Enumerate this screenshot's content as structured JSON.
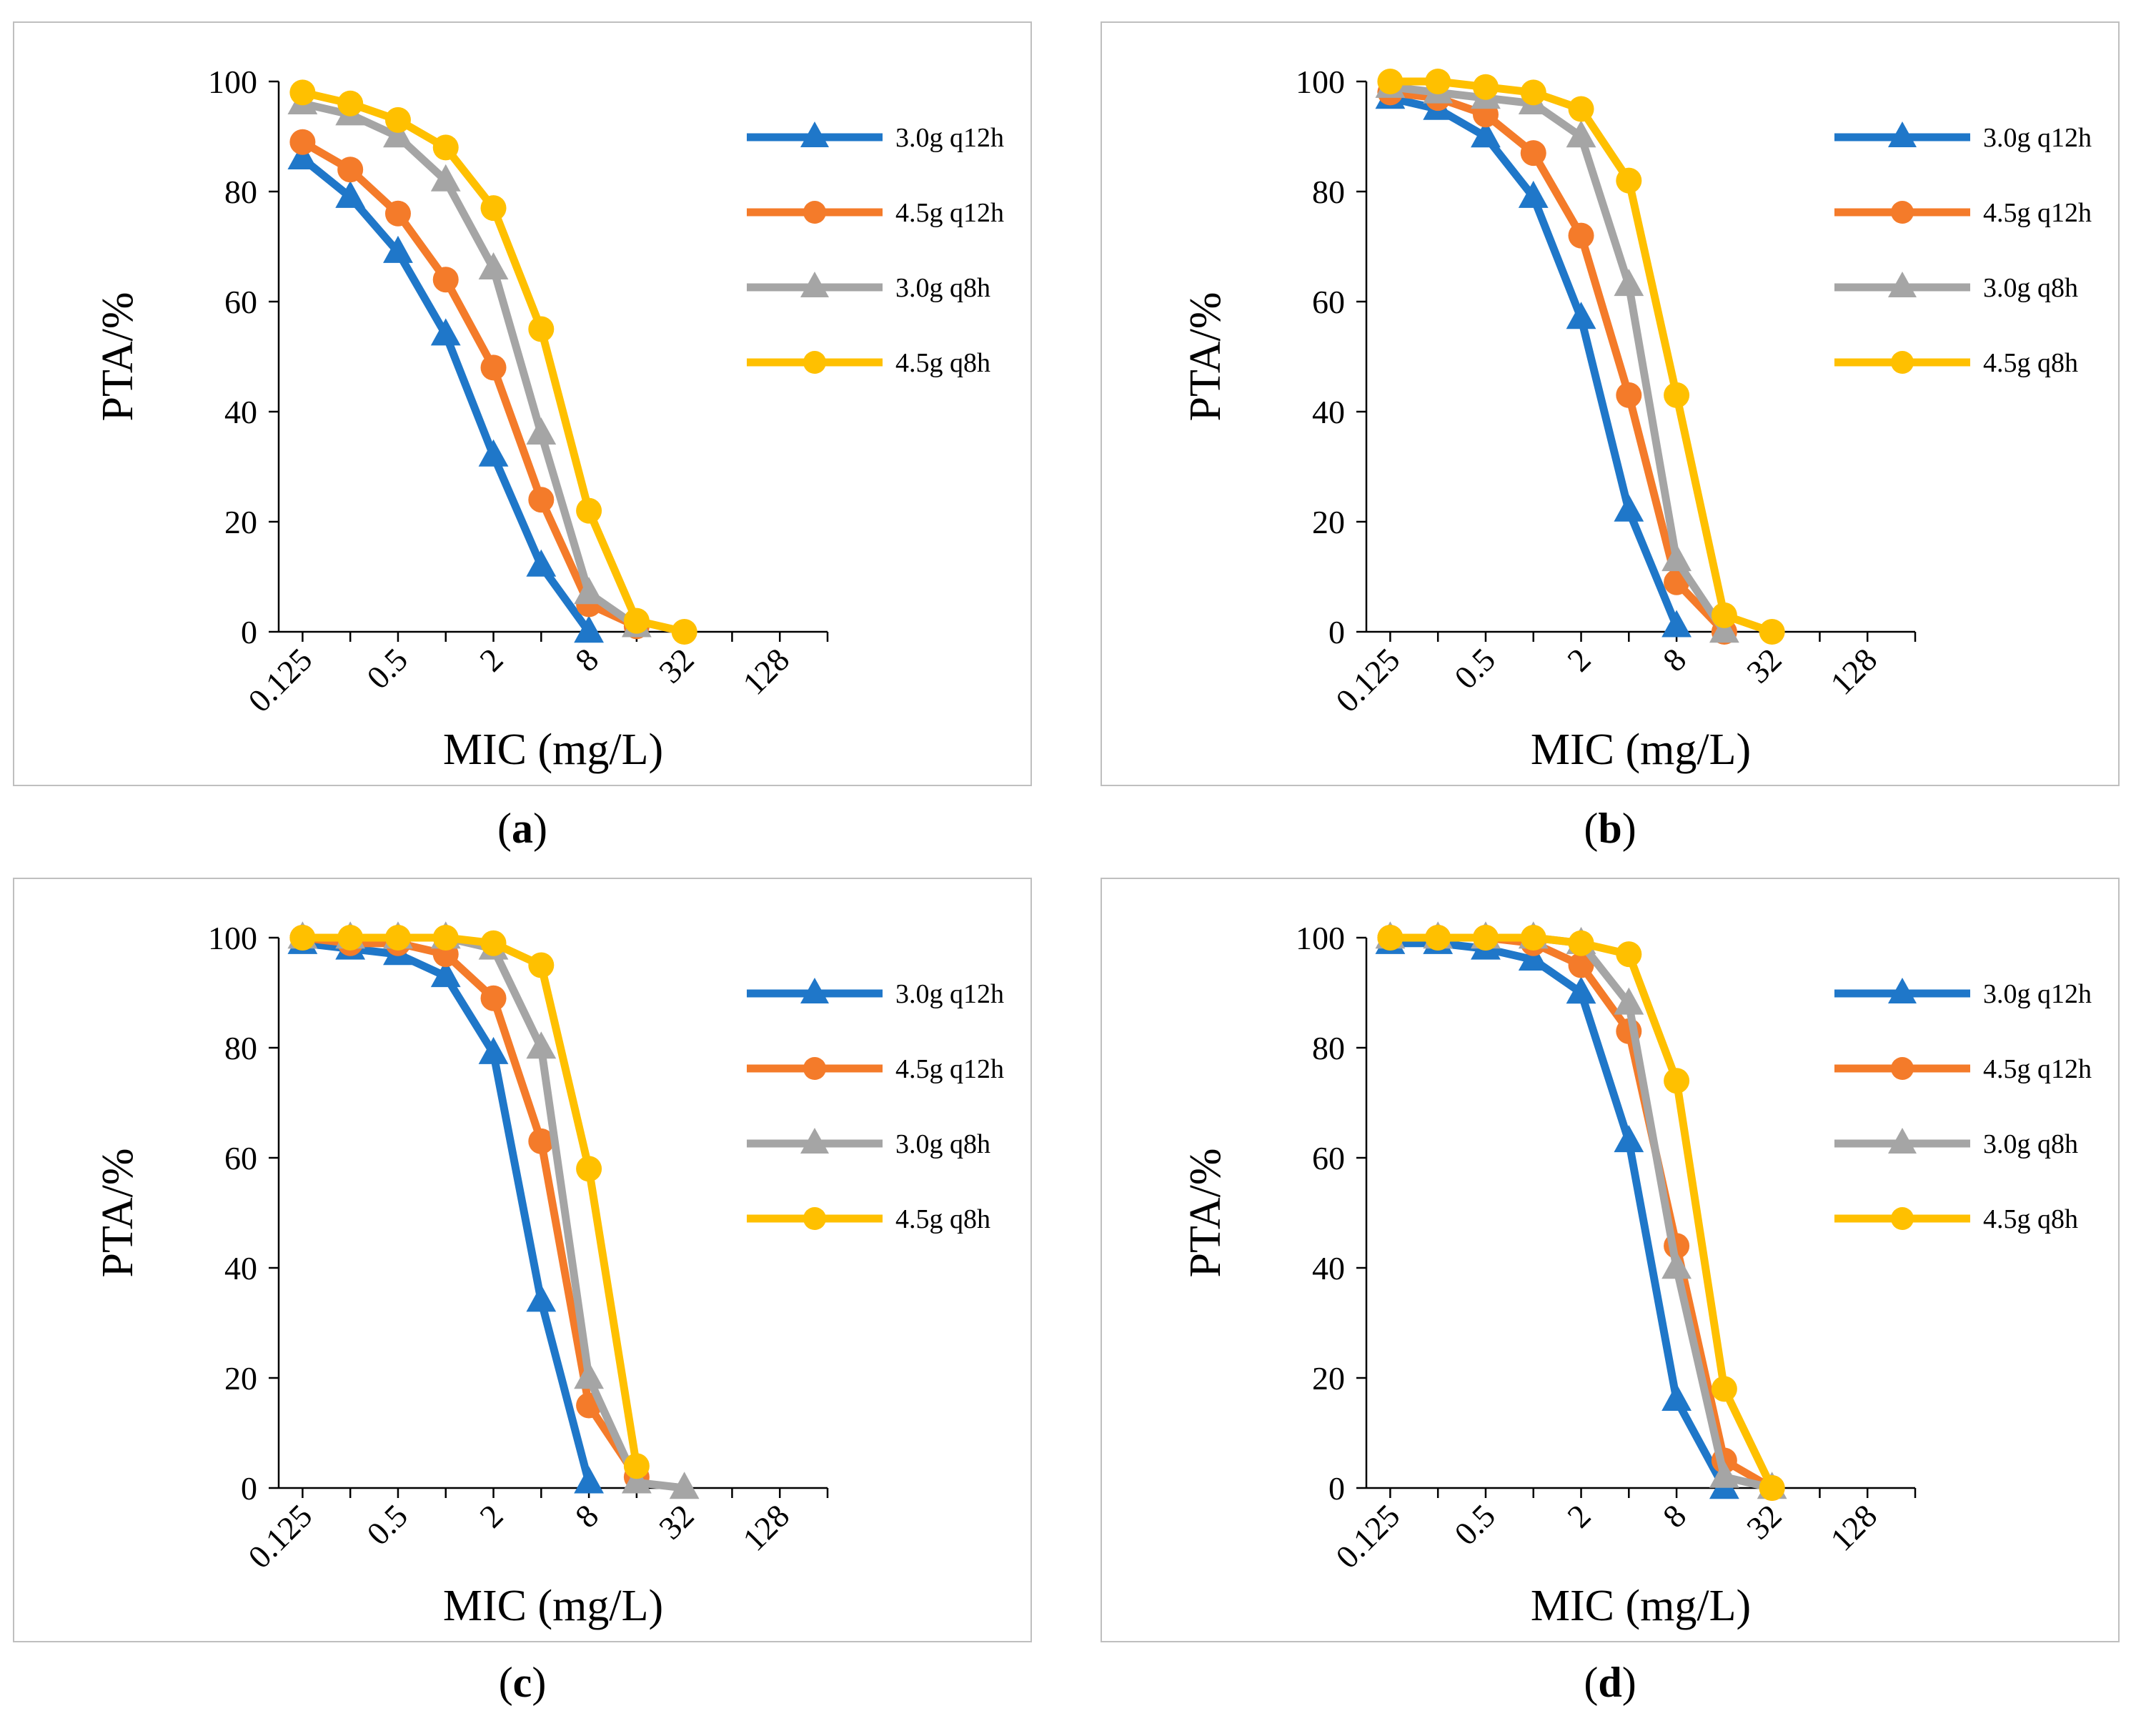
{
  "colors": {
    "3.0g q12h": "#1f77c9",
    "4.5g q12h": "#f47b2a",
    "3.0g q8h": "#a5a5a5",
    "4.5g q8h": "#ffc000"
  },
  "chart_data": [
    {
      "type": "line",
      "panel_label": "a",
      "xlabel": "MIC (mg/L)",
      "ylabel": "PTA/%",
      "x_ticks": [
        "0.125",
        "0.5",
        "2",
        "8",
        "32",
        "128"
      ],
      "x": [
        0.125,
        0.25,
        0.5,
        1,
        2,
        4,
        8,
        16,
        32
      ],
      "xlim_log2": [
        -3.5,
        8
      ],
      "y_ticks": [
        "0",
        "20",
        "40",
        "60",
        "80",
        "100"
      ],
      "ylim": [
        0,
        100
      ],
      "series": [
        {
          "name": "3.0g q12h",
          "marker": "triangle",
          "values": [
            86,
            79,
            69,
            54,
            32,
            12,
            0,
            null,
            null
          ]
        },
        {
          "name": "4.5g q12h",
          "marker": "circle",
          "values": [
            89,
            84,
            76,
            64,
            48,
            24,
            5,
            1,
            null
          ]
        },
        {
          "name": "3.0g q8h",
          "marker": "triangle",
          "values": [
            96,
            94,
            90,
            82,
            66,
            36,
            7,
            1,
            null
          ]
        },
        {
          "name": "4.5g q8h",
          "marker": "circle",
          "values": [
            98,
            96,
            93,
            88,
            77,
            55,
            22,
            2,
            0
          ]
        }
      ]
    },
    {
      "type": "line",
      "panel_label": "b",
      "xlabel": "MIC (mg/L)",
      "ylabel": "PTA/%",
      "x_ticks": [
        "0.125",
        "0.5",
        "2",
        "8",
        "32",
        "128"
      ],
      "x": [
        0.125,
        0.25,
        0.5,
        1,
        2,
        4,
        8,
        16,
        32
      ],
      "xlim_log2": [
        -3.5,
        8
      ],
      "y_ticks": [
        "0",
        "20",
        "40",
        "60",
        "80",
        "100"
      ],
      "ylim": [
        0,
        100
      ],
      "series": [
        {
          "name": "3.0g q12h",
          "marker": "triangle",
          "values": [
            97,
            95,
            90,
            79,
            57,
            22,
            1,
            null,
            null
          ]
        },
        {
          "name": "4.5g q12h",
          "marker": "circle",
          "values": [
            98,
            97,
            94,
            87,
            72,
            43,
            9,
            0,
            null
          ]
        },
        {
          "name": "3.0g q8h",
          "marker": "triangle",
          "values": [
            99,
            98,
            97,
            96,
            90,
            63,
            13,
            0,
            null
          ]
        },
        {
          "name": "4.5g q8h",
          "marker": "circle",
          "values": [
            100,
            100,
            99,
            98,
            95,
            82,
            43,
            3,
            0
          ]
        }
      ]
    },
    {
      "type": "line",
      "panel_label": "c",
      "xlabel": "MIC (mg/L)",
      "ylabel": "PTA/%",
      "x_ticks": [
        "0.125",
        "0.5",
        "2",
        "8",
        "32",
        "128"
      ],
      "x": [
        0.125,
        0.25,
        0.5,
        1,
        2,
        4,
        8,
        16,
        32
      ],
      "xlim_log2": [
        -3.5,
        8
      ],
      "y_ticks": [
        "0",
        "20",
        "40",
        "60",
        "80",
        "100"
      ],
      "ylim": [
        0,
        100
      ],
      "series": [
        {
          "name": "3.0g q12h",
          "marker": "triangle",
          "values": [
            99,
            98,
            97,
            93,
            79,
            34,
            1,
            null,
            null
          ]
        },
        {
          "name": "4.5g q12h",
          "marker": "circle",
          "values": [
            100,
            99,
            99,
            97,
            89,
            63,
            15,
            2,
            null
          ]
        },
        {
          "name": "3.0g q8h",
          "marker": "triangle",
          "values": [
            100,
            100,
            100,
            100,
            98,
            80,
            20,
            1,
            0
          ]
        },
        {
          "name": "4.5g q8h",
          "marker": "circle",
          "values": [
            100,
            100,
            100,
            100,
            99,
            95,
            58,
            4,
            null
          ]
        }
      ]
    },
    {
      "type": "line",
      "panel_label": "d",
      "xlabel": "MIC (mg/L)",
      "ylabel": "PTA/%",
      "x_ticks": [
        "0.125",
        "0.5",
        "2",
        "8",
        "32",
        "128"
      ],
      "x": [
        0.125,
        0.25,
        0.5,
        1,
        2,
        4,
        8,
        16,
        32
      ],
      "xlim_log2": [
        -3.5,
        8
      ],
      "y_ticks": [
        "0",
        "20",
        "40",
        "60",
        "80",
        "100"
      ],
      "ylim": [
        0,
        100
      ],
      "series": [
        {
          "name": "3.0g q12h",
          "marker": "triangle",
          "values": [
            99,
            99,
            98,
            96,
            90,
            63,
            16,
            0,
            null
          ]
        },
        {
          "name": "4.5g q12h",
          "marker": "circle",
          "values": [
            100,
            100,
            100,
            99,
            95,
            83,
            44,
            5,
            0
          ]
        },
        {
          "name": "3.0g q8h",
          "marker": "triangle",
          "values": [
            100,
            100,
            100,
            100,
            99,
            88,
            40,
            2,
            0
          ]
        },
        {
          "name": "4.5g q8h",
          "marker": "circle",
          "values": [
            100,
            100,
            100,
            100,
            99,
            97,
            74,
            18,
            0
          ]
        }
      ]
    }
  ]
}
